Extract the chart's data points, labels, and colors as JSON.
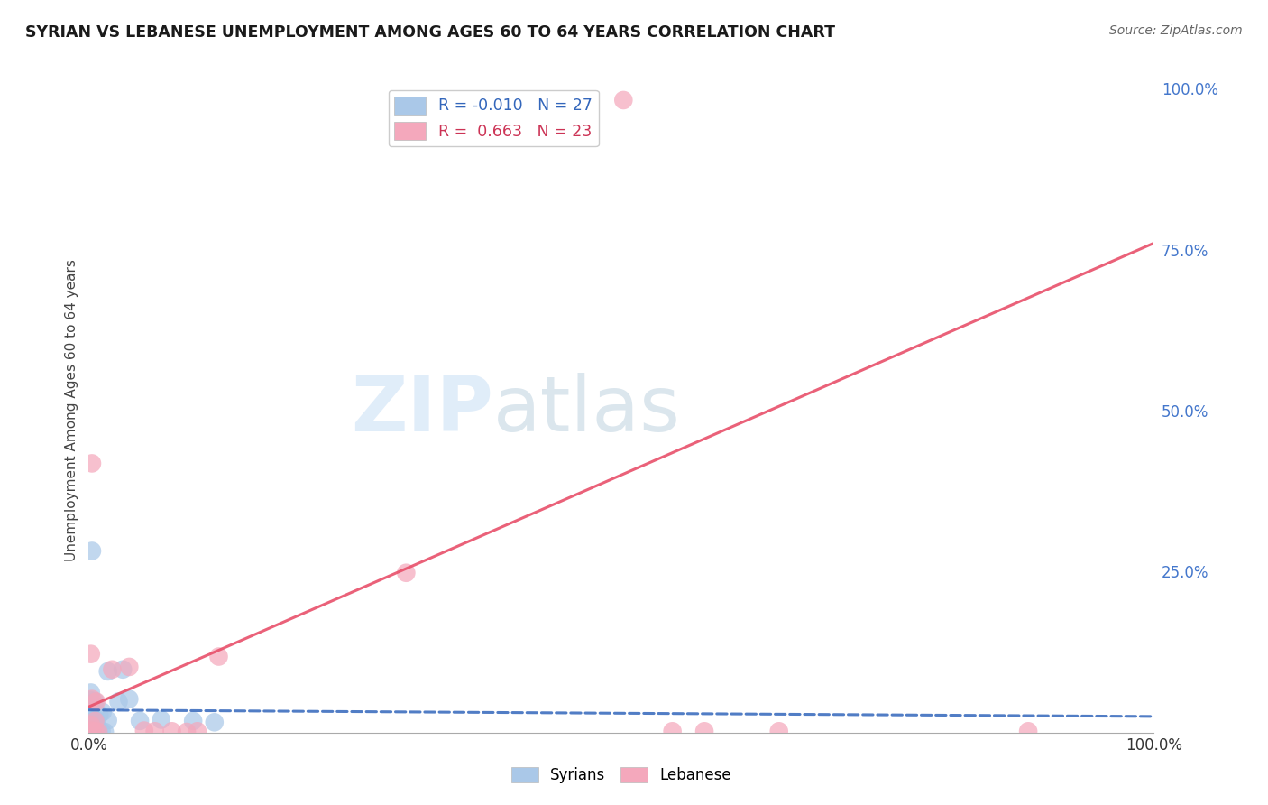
{
  "title": "SYRIAN VS LEBANESE UNEMPLOYMENT AMONG AGES 60 TO 64 YEARS CORRELATION CHART",
  "source": "Source: ZipAtlas.com",
  "ylabel": "Unemployment Among Ages 60 to 64 years",
  "xlim": [
    0,
    1.0
  ],
  "ylim": [
    0,
    1.0
  ],
  "ytick_positions": [
    0.25,
    0.5,
    0.75,
    1.0
  ],
  "legend_syrian_r": "-0.010",
  "legend_syrian_n": "27",
  "legend_lebanese_r": "0.663",
  "legend_lebanese_n": "23",
  "syrian_color": "#aac8e8",
  "lebanese_color": "#f4a8bc",
  "syrian_line_color": "#3366bb",
  "lebanese_line_color": "#e8506a",
  "background_color": "#ffffff",
  "grid_color": "#cccccc",
  "watermark_color": "#c8dff5",
  "syrian_line": [
    0.0,
    0.035,
    1.0,
    0.025
  ],
  "lebanese_line": [
    0.0,
    0.04,
    1.0,
    0.76
  ],
  "syrian_points": [
    [
      0.004,
      0.002
    ],
    [
      0.006,
      0.003
    ],
    [
      0.009,
      0.001
    ],
    [
      0.012,
      0.002
    ],
    [
      0.015,
      0.001
    ],
    [
      0.003,
      0.008
    ],
    [
      0.005,
      0.01
    ],
    [
      0.008,
      0.009
    ],
    [
      0.002,
      0.012
    ],
    [
      0.001,
      0.018
    ],
    [
      0.006,
      0.02
    ],
    [
      0.018,
      0.019
    ],
    [
      0.002,
      0.03
    ],
    [
      0.01,
      0.028
    ],
    [
      0.013,
      0.032
    ],
    [
      0.002,
      0.05
    ],
    [
      0.006,
      0.048
    ],
    [
      0.003,
      0.282
    ],
    [
      0.018,
      0.095
    ],
    [
      0.032,
      0.098
    ],
    [
      0.048,
      0.018
    ],
    [
      0.068,
      0.02
    ],
    [
      0.098,
      0.018
    ],
    [
      0.118,
      0.016
    ],
    [
      0.028,
      0.048
    ],
    [
      0.038,
      0.052
    ],
    [
      0.002,
      0.062
    ]
  ],
  "lebanese_points": [
    [
      0.003,
      0.003
    ],
    [
      0.006,
      0.002
    ],
    [
      0.009,
      0.001
    ],
    [
      0.002,
      0.012
    ],
    [
      0.006,
      0.018
    ],
    [
      0.003,
      0.052
    ],
    [
      0.007,
      0.048
    ],
    [
      0.002,
      0.122
    ],
    [
      0.003,
      0.418
    ],
    [
      0.022,
      0.098
    ],
    [
      0.038,
      0.102
    ],
    [
      0.052,
      0.003
    ],
    [
      0.062,
      0.002
    ],
    [
      0.078,
      0.002
    ],
    [
      0.092,
      0.001
    ],
    [
      0.102,
      0.002
    ],
    [
      0.122,
      0.118
    ],
    [
      0.298,
      0.248
    ],
    [
      0.548,
      0.002
    ],
    [
      0.578,
      0.002
    ],
    [
      0.648,
      0.002
    ],
    [
      0.502,
      0.982
    ],
    [
      0.882,
      0.002
    ]
  ]
}
